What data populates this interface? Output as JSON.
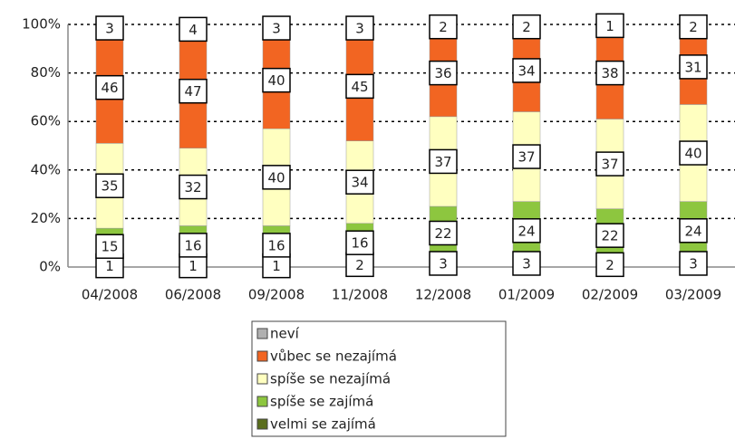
{
  "chart_data": {
    "type": "stacked_bar",
    "categories": [
      "04/2008",
      "06/2008",
      "09/2008",
      "11/2008",
      "12/2008",
      "01/2009",
      "02/2009",
      "03/2009"
    ],
    "series": [
      {
        "name": "velmi se zajímá",
        "color": "#5a6e1c",
        "values": [
          1,
          1,
          1,
          2,
          3,
          3,
          2,
          3
        ]
      },
      {
        "name": "spíše se zajímá",
        "color": "#8dc63f",
        "values": [
          15,
          16,
          16,
          16,
          22,
          24,
          22,
          24
        ]
      },
      {
        "name": "spíše se nezajímá",
        "color": "#ffffc0",
        "values": [
          35,
          32,
          40,
          34,
          37,
          37,
          37,
          40
        ]
      },
      {
        "name": "vůbec se nezajímá",
        "color": "#f26522",
        "values": [
          46,
          47,
          40,
          45,
          36,
          34,
          38,
          31
        ]
      },
      {
        "name": "neví",
        "color": "#b0b0b0",
        "values": [
          3,
          4,
          3,
          3,
          2,
          2,
          1,
          2
        ]
      }
    ],
    "ylim": [
      0,
      100
    ],
    "yticks": [
      {
        "value": 0,
        "label": "0%"
      },
      {
        "value": 20,
        "label": "20%"
      },
      {
        "value": 40,
        "label": "40%"
      },
      {
        "value": 60,
        "label": "60%"
      },
      {
        "value": 80,
        "label": "80%"
      },
      {
        "value": 100,
        "label": "100%"
      }
    ],
    "grid": true,
    "legend": "bottom"
  }
}
